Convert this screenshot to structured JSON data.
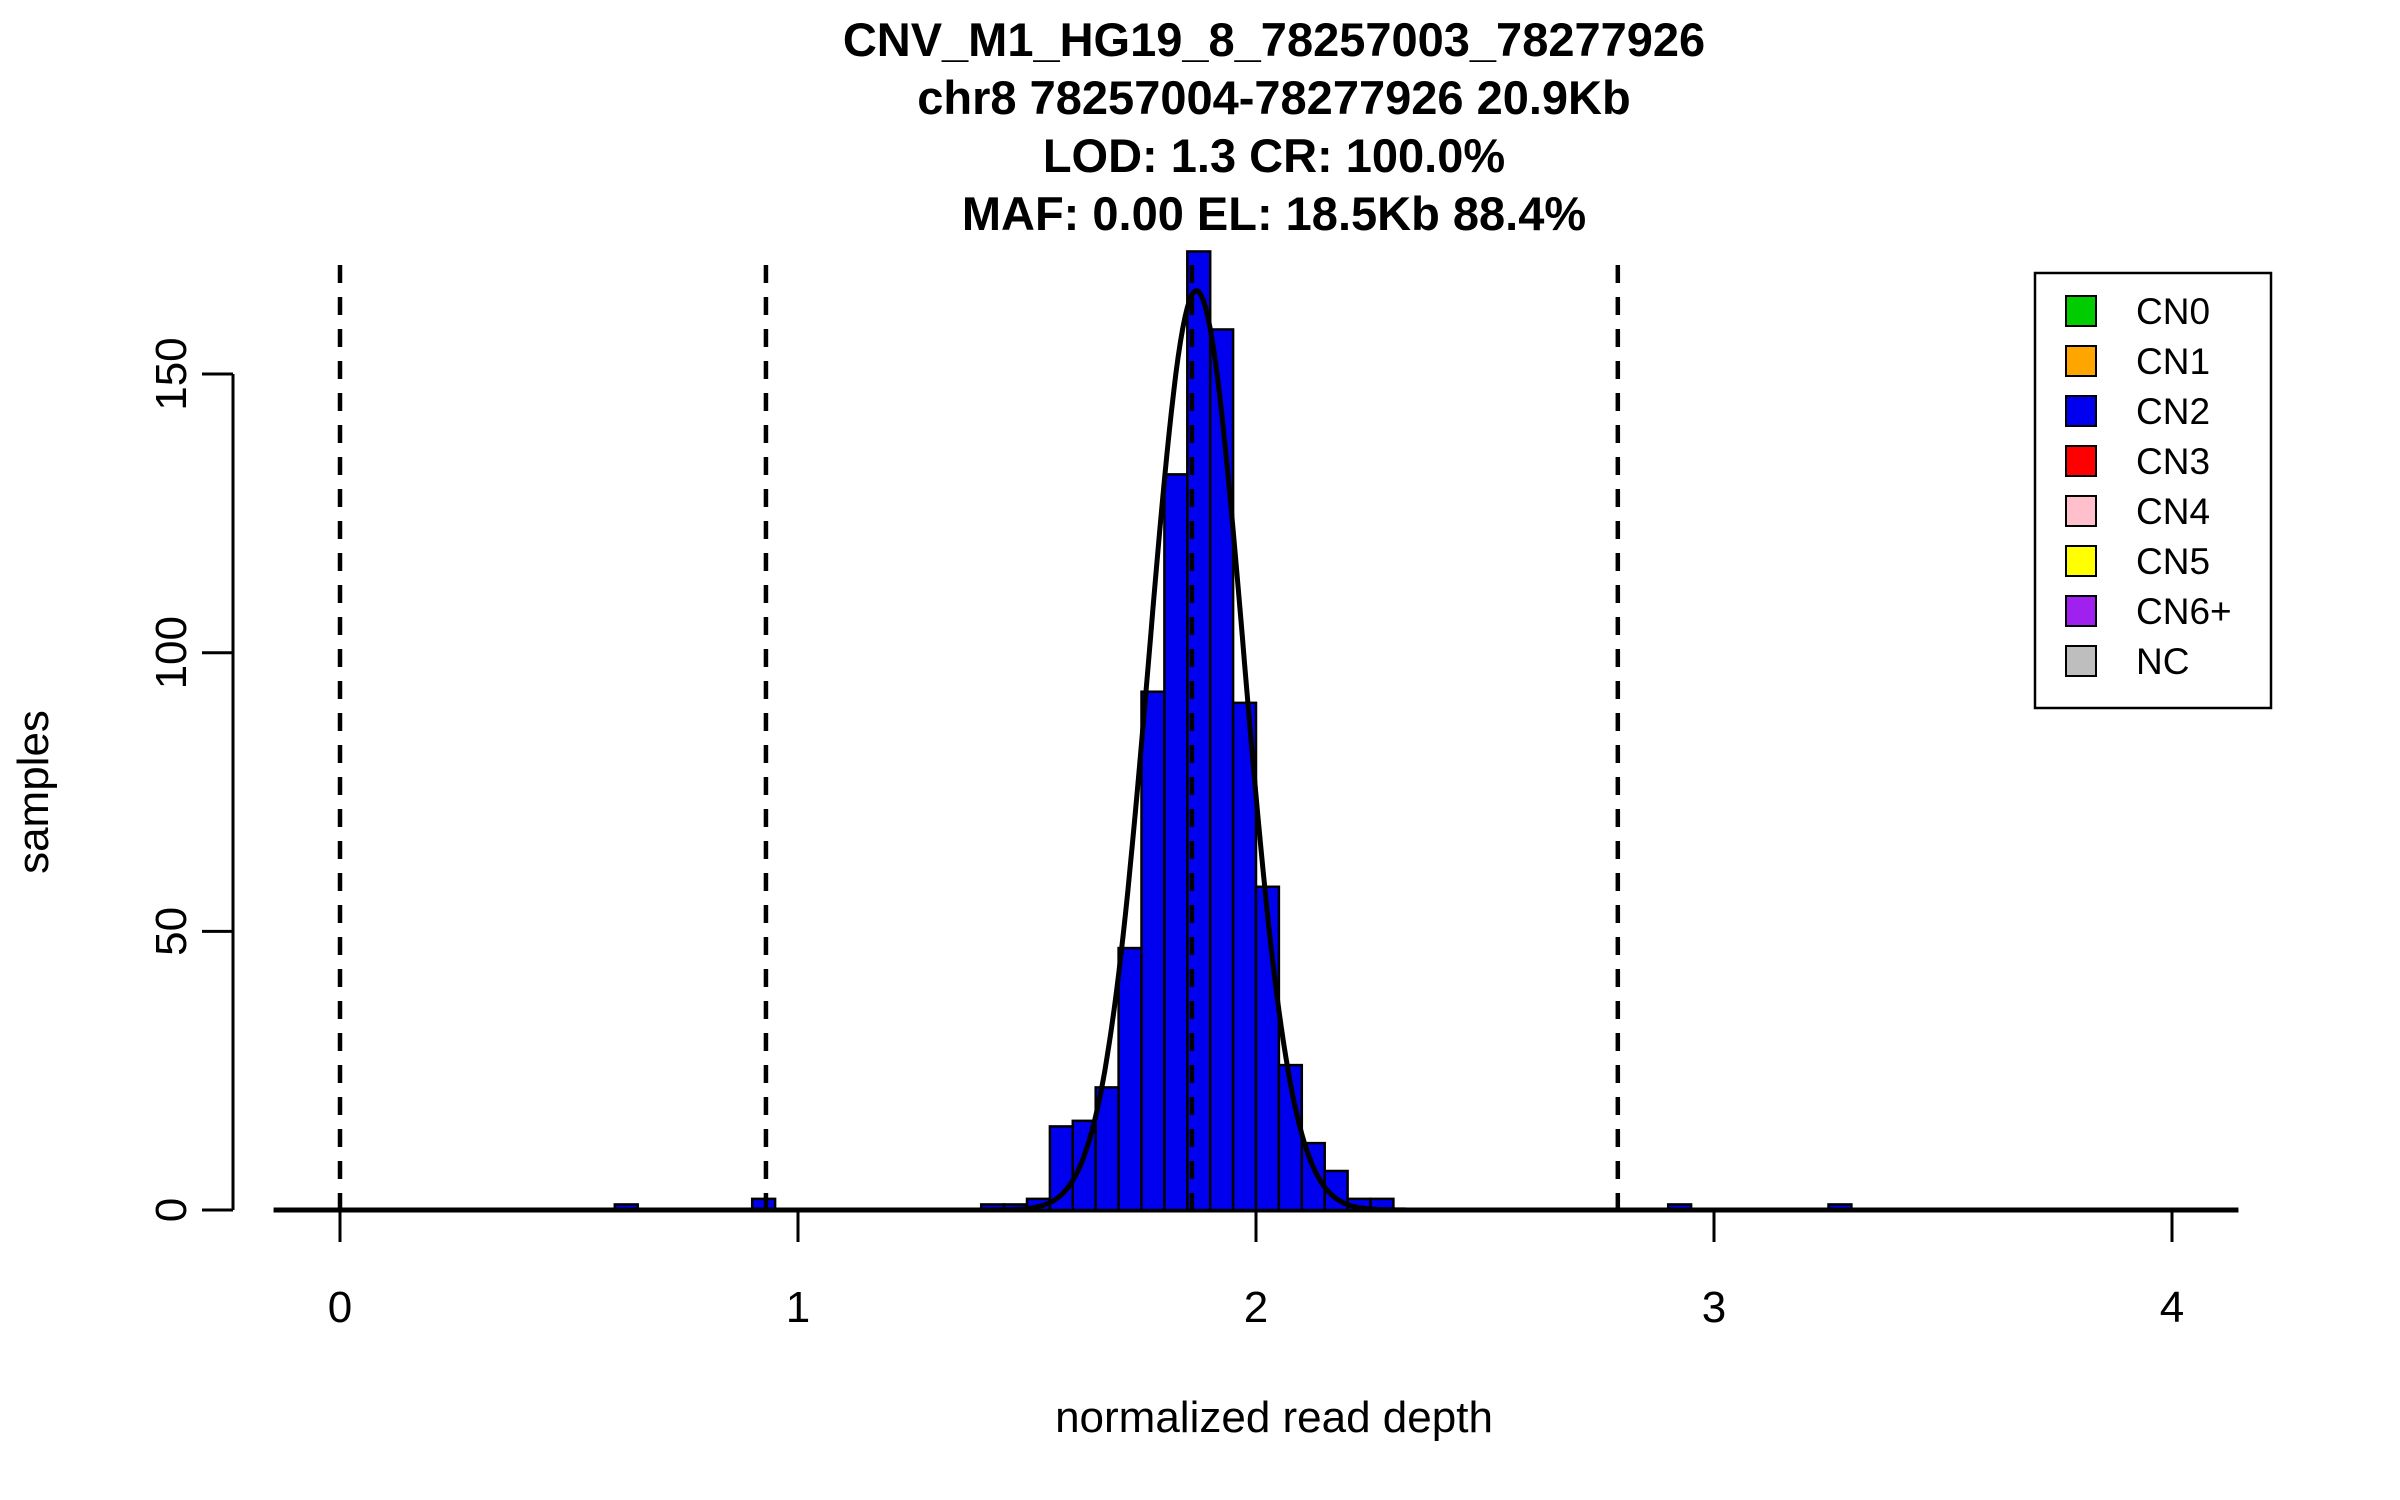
{
  "chart_data": {
    "type": "bar",
    "subtype": "histogram-with-density",
    "title_lines": [
      "CNV_M1_HG19_8_78257003_78277926",
      "chr8 78257004-78277926 20.9Kb",
      "LOD: 1.3 CR: 100.0%",
      "MAF: 0.00 EL: 18.5Kb 88.4%"
    ],
    "xlabel": "normalized read depth",
    "ylabel": "samples",
    "x_ticks": [
      0,
      1,
      2,
      3,
      4
    ],
    "y_ticks": [
      0,
      50,
      100,
      150
    ],
    "xlim": [
      -0.145,
      4.145
    ],
    "ylim": [
      0,
      172
    ],
    "grid": false,
    "legend_position": "top-right",
    "bin_width": 0.05,
    "bar_color": "#0000EE",
    "bar_stroke": "#000000",
    "bars": [
      {
        "x": 0.6,
        "count": 1
      },
      {
        "x": 0.9,
        "count": 2
      },
      {
        "x": 1.4,
        "count": 1
      },
      {
        "x": 1.45,
        "count": 1
      },
      {
        "x": 1.5,
        "count": 2
      },
      {
        "x": 1.55,
        "count": 15
      },
      {
        "x": 1.6,
        "count": 16
      },
      {
        "x": 1.65,
        "count": 22
      },
      {
        "x": 1.7,
        "count": 47
      },
      {
        "x": 1.75,
        "count": 93
      },
      {
        "x": 1.8,
        "count": 132
      },
      {
        "x": 1.85,
        "count": 172
      },
      {
        "x": 1.9,
        "count": 158
      },
      {
        "x": 1.95,
        "count": 91
      },
      {
        "x": 2.0,
        "count": 58
      },
      {
        "x": 2.05,
        "count": 26
      },
      {
        "x": 2.1,
        "count": 12
      },
      {
        "x": 2.15,
        "count": 7
      },
      {
        "x": 2.2,
        "count": 2
      },
      {
        "x": 2.25,
        "count": 2
      },
      {
        "x": 2.9,
        "count": 1
      },
      {
        "x": 3.25,
        "count": 1
      }
    ],
    "dashed_lines_x": [
      0,
      0.93,
      1.86,
      2.79
    ],
    "curve": {
      "mean": 1.87,
      "sd": 0.103,
      "peak": 165,
      "color": "#000000"
    },
    "legend": [
      {
        "label": "CN0",
        "color": "#00CC00"
      },
      {
        "label": "CN1",
        "color": "#FFA500"
      },
      {
        "label": "CN2",
        "color": "#0000EE"
      },
      {
        "label": "CN3",
        "color": "#FF0000"
      },
      {
        "label": "CN4",
        "color": "#FFC0CB"
      },
      {
        "label": "CN5",
        "color": "#FFFF00"
      },
      {
        "label": "CN6+",
        "color": "#A020F0"
      },
      {
        "label": "NC",
        "color": "#BEBEBE"
      }
    ]
  }
}
